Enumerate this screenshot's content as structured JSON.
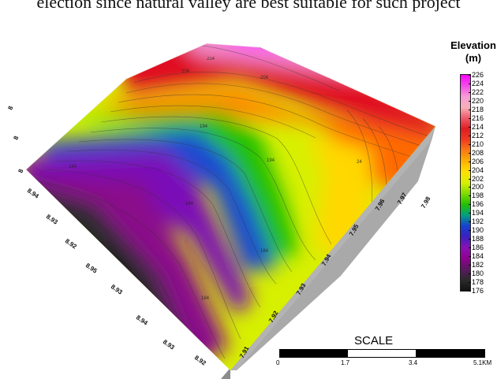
{
  "caption": "election since natural valley are best suitable for such project",
  "legend": {
    "title": "Elevation",
    "unit": "(m)",
    "ticks": [
      "226",
      "224",
      "222",
      "220",
      "218",
      "216",
      "214",
      "212",
      "210",
      "208",
      "206",
      "204",
      "202",
      "200",
      "198",
      "196",
      "194",
      "192",
      "190",
      "188",
      "186",
      "184",
      "182",
      "180",
      "178",
      "176"
    ],
    "colors": [
      "#ff00ff",
      "#f24ce8",
      "#f89ad8",
      "#f7b0b8",
      "#ee5a6a",
      "#e01c22",
      "#f03a1f",
      "#fb7a13",
      "#ffb000",
      "#ffe000",
      "#d8ef00",
      "#7fdc00",
      "#22c000",
      "#00a080",
      "#1840d0",
      "#3a20c0",
      "#8a10b8",
      "#900090",
      "#5a1860",
      "#2b2b2b",
      "#111111"
    ]
  },
  "contour_labels": [
    "214",
    "204",
    "204",
    "194",
    "194",
    "184",
    "184",
    "184",
    "184",
    "24"
  ],
  "axis_x": [
    "8.94",
    "8.93",
    "8.92",
    "8.95",
    "8.93",
    "8.94",
    "8.93",
    "8.92"
  ],
  "axis_y": [
    "7.91",
    "7.92",
    "7.93",
    "7.94",
    "7.95",
    "7.96",
    "7.97",
    "7.98"
  ],
  "axis_z": [
    "8",
    "8",
    "8"
  ],
  "scale": {
    "title": "SCALE",
    "labels": [
      "0",
      "1.7",
      "3.4",
      "5.1KM"
    ]
  }
}
